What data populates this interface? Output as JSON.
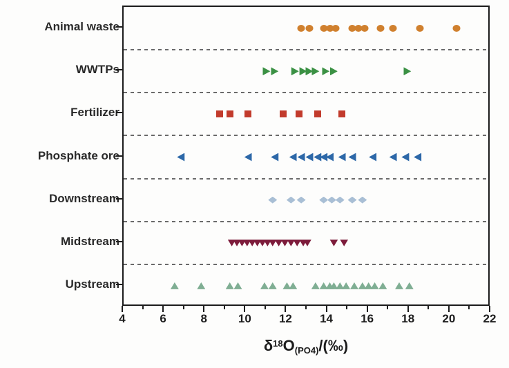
{
  "figure": {
    "background": "#fdfdfc",
    "axis_color": "#1c1c1c",
    "separator_color": "#6a6a6a",
    "label_color": "#2a2a2a"
  },
  "chart_data": {
    "type": "scatter",
    "title": "",
    "xlabel": "δ18O(PO4)/(‰)",
    "xlabel_parts": [
      {
        "text": "δ",
        "script": "normal"
      },
      {
        "text": "18",
        "script": "super"
      },
      {
        "text": "O",
        "script": "normal"
      },
      {
        "text": "(PO4)",
        "script": "sub"
      },
      {
        "text": "/(‰)",
        "script": "normal"
      }
    ],
    "ylabel": "",
    "xlim": [
      4,
      22
    ],
    "x_major_ticks": [
      4,
      6,
      8,
      10,
      12,
      14,
      16,
      18,
      20,
      22
    ],
    "x_minor_ticks": [
      5,
      7,
      9,
      11,
      13,
      15,
      17,
      19,
      21
    ],
    "grid": "dashed horizontal separators between category rows",
    "legend_position": "none",
    "categories_top_to_bottom": [
      "Animal waste",
      "WWTPs",
      "Fertilizer",
      "Phosphate ore",
      "Downstream",
      "Midstream",
      "Upstream"
    ],
    "series": [
      {
        "name": "Animal waste",
        "marker": "circle",
        "color": "#D0802E",
        "values": [
          12.7,
          13.1,
          13.8,
          14.1,
          14.4,
          15.2,
          15.5,
          15.8,
          16.6,
          17.2,
          18.5,
          20.3
        ]
      },
      {
        "name": "WWTPs",
        "marker": "triangle-right",
        "color": "#3B9144",
        "values": [
          11.0,
          11.4,
          12.4,
          12.8,
          13.1,
          13.4,
          13.9,
          14.3,
          17.9
        ]
      },
      {
        "name": "Fertilizer",
        "marker": "square",
        "color": "#C23B2C",
        "values": [
          8.7,
          9.2,
          10.1,
          11.8,
          12.6,
          13.5,
          14.7
        ]
      },
      {
        "name": "Phosphate ore",
        "marker": "triangle-left",
        "color": "#2D68A8",
        "values": [
          6.8,
          10.1,
          11.4,
          12.3,
          12.7,
          13.1,
          13.5,
          13.8,
          14.1,
          14.7,
          15.2,
          16.2,
          17.2,
          17.8,
          18.4
        ]
      },
      {
        "name": "Downstream",
        "marker": "diamond",
        "color": "#A9BFD5",
        "values": [
          11.3,
          12.2,
          12.7,
          13.8,
          14.2,
          14.6,
          15.2,
          15.7
        ]
      },
      {
        "name": "Midstream",
        "marker": "triangle-down",
        "color": "#7D1C3B",
        "values": [
          9.3,
          9.55,
          9.8,
          10.05,
          10.3,
          10.55,
          10.8,
          11.05,
          11.3,
          11.6,
          11.9,
          12.2,
          12.5,
          12.8,
          13.0,
          14.3,
          14.8
        ]
      },
      {
        "name": "Upstream",
        "marker": "triangle-up",
        "color": "#7FAE93",
        "values": [
          6.5,
          7.8,
          9.2,
          9.6,
          10.9,
          11.3,
          12.0,
          12.3,
          13.4,
          13.8,
          14.1,
          14.3,
          14.6,
          14.9,
          15.3,
          15.7,
          16.0,
          16.3,
          16.7,
          17.5,
          18.0
        ]
      }
    ]
  }
}
